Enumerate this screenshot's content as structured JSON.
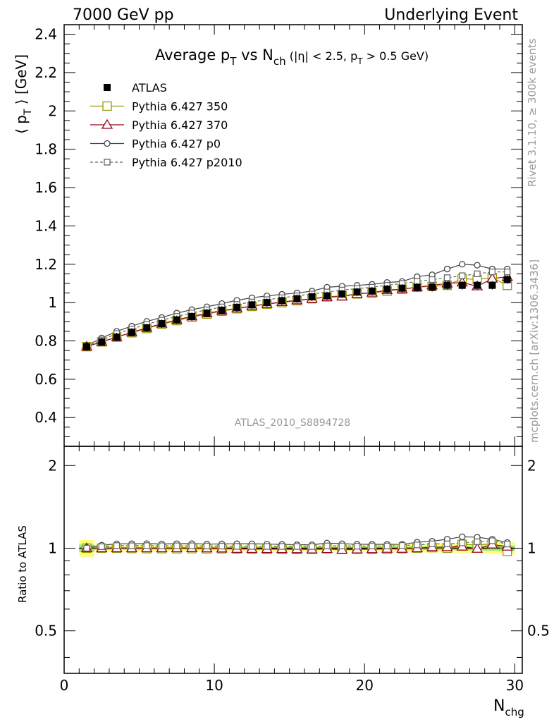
{
  "header": {
    "left": "7000 GeV pp",
    "right": "Underlying Event"
  },
  "side_text": {
    "rivet": "Rivet 3.1.10, ≥ 300k events",
    "mcplots": "mcplots.cern.ch [arXiv:1306.3436]"
  },
  "watermark": "ATLAS_2010_S8894728",
  "title": {
    "main": "Average p",
    "sub_T": "T",
    "vs": " vs N",
    "sub_ch": "ch",
    "cut": " (|η| < 2.5, p",
    "cut_sub": "T",
    "cut_end": " > 0.5 GeV)"
  },
  "ylabel": {
    "pre": "⟨ p",
    "sub": "T",
    "post": " ⟩ [GeV]"
  },
  "ratio_ylabel": "Ratio to ATLAS",
  "xlabel": {
    "main": "N",
    "sub": "chg"
  },
  "chart_data": {
    "type": "scatter",
    "x": [
      1.5,
      2.5,
      3.5,
      4.5,
      5.5,
      6.5,
      7.5,
      8.5,
      9.5,
      10.5,
      11.5,
      12.5,
      13.5,
      14.5,
      15.5,
      16.5,
      17.5,
      18.5,
      19.5,
      20.5,
      21.5,
      22.5,
      23.5,
      24.5,
      25.5,
      26.5,
      27.5,
      28.5,
      29.5
    ],
    "xlim": [
      0,
      30.5
    ],
    "ylim": [
      0.25,
      2.45
    ],
    "ratio_ylim": [
      0.35,
      2.35
    ],
    "x_ticks": [
      "0",
      "10",
      "20",
      "30"
    ],
    "y_ticks": [
      "0.4",
      "0.6",
      "0.8",
      "1",
      "1.2",
      "1.4",
      "1.6",
      "1.8",
      "2",
      "2.2",
      "2.4"
    ],
    "ratio_ticks": [
      "0.5",
      "1",
      "2"
    ],
    "series": [
      {
        "name": "ATLAS",
        "color": "#000000",
        "marker": "filled-square",
        "values": [
          0.77,
          0.795,
          0.82,
          0.845,
          0.868,
          0.89,
          0.91,
          0.927,
          0.945,
          0.96,
          0.975,
          0.988,
          1.0,
          1.01,
          1.02,
          1.03,
          1.035,
          1.045,
          1.055,
          1.06,
          1.07,
          1.075,
          1.08,
          1.08,
          1.09,
          1.09,
          1.09,
          1.09,
          1.12
        ]
      },
      {
        "name": "Pythia 6.427 350",
        "color": "#999900",
        "marker": "open-square",
        "values": [
          0.77,
          0.795,
          0.82,
          0.843,
          0.865,
          0.887,
          0.906,
          0.924,
          0.94,
          0.955,
          0.968,
          0.98,
          0.992,
          1.0,
          1.01,
          1.02,
          1.03,
          1.035,
          1.045,
          1.05,
          1.06,
          1.07,
          1.08,
          1.085,
          1.09,
          1.125,
          1.12,
          1.13,
          1.09
        ]
      },
      {
        "name": "Pythia 6.427 370",
        "color": "#99001a",
        "marker": "open-triangle",
        "values": [
          0.77,
          0.795,
          0.82,
          0.845,
          0.868,
          0.89,
          0.91,
          0.928,
          0.944,
          0.958,
          0.97,
          0.982,
          0.993,
          1.003,
          1.012,
          1.02,
          1.028,
          1.032,
          1.045,
          1.052,
          1.065,
          1.07,
          1.08,
          1.09,
          1.1,
          1.105,
          1.085,
          1.125,
          1.135
        ]
      },
      {
        "name": "Pythia 6.427 p0",
        "color": "#444444",
        "marker": "open-circle",
        "values": [
          0.775,
          0.815,
          0.85,
          0.877,
          0.902,
          0.922,
          0.945,
          0.963,
          0.978,
          0.995,
          1.012,
          1.025,
          1.035,
          1.043,
          1.05,
          1.06,
          1.08,
          1.085,
          1.09,
          1.095,
          1.105,
          1.11,
          1.135,
          1.145,
          1.175,
          1.2,
          1.195,
          1.175,
          1.175
        ]
      },
      {
        "name": "Pythia 6.427 p2010",
        "color": "#666666",
        "marker": "open-square-dashed",
        "values": [
          0.77,
          0.805,
          0.838,
          0.862,
          0.887,
          0.908,
          0.928,
          0.946,
          0.962,
          0.977,
          0.99,
          1.003,
          1.015,
          1.025,
          1.035,
          1.045,
          1.055,
          1.065,
          1.073,
          1.08,
          1.09,
          1.1,
          1.11,
          1.12,
          1.13,
          1.14,
          1.15,
          1.16,
          1.16
        ]
      }
    ],
    "atlas_rel_err": [
      0.07,
      0.03,
      0.025,
      0.025,
      0.025,
      0.025,
      0.025,
      0.025,
      0.025,
      0.025,
      0.025,
      0.025,
      0.025,
      0.025,
      0.025,
      0.025,
      0.025,
      0.025,
      0.025,
      0.025,
      0.03,
      0.03,
      0.035,
      0.035,
      0.035,
      0.04,
      0.04,
      0.045,
      0.05
    ],
    "legend_position": "top-left",
    "grid": false
  }
}
